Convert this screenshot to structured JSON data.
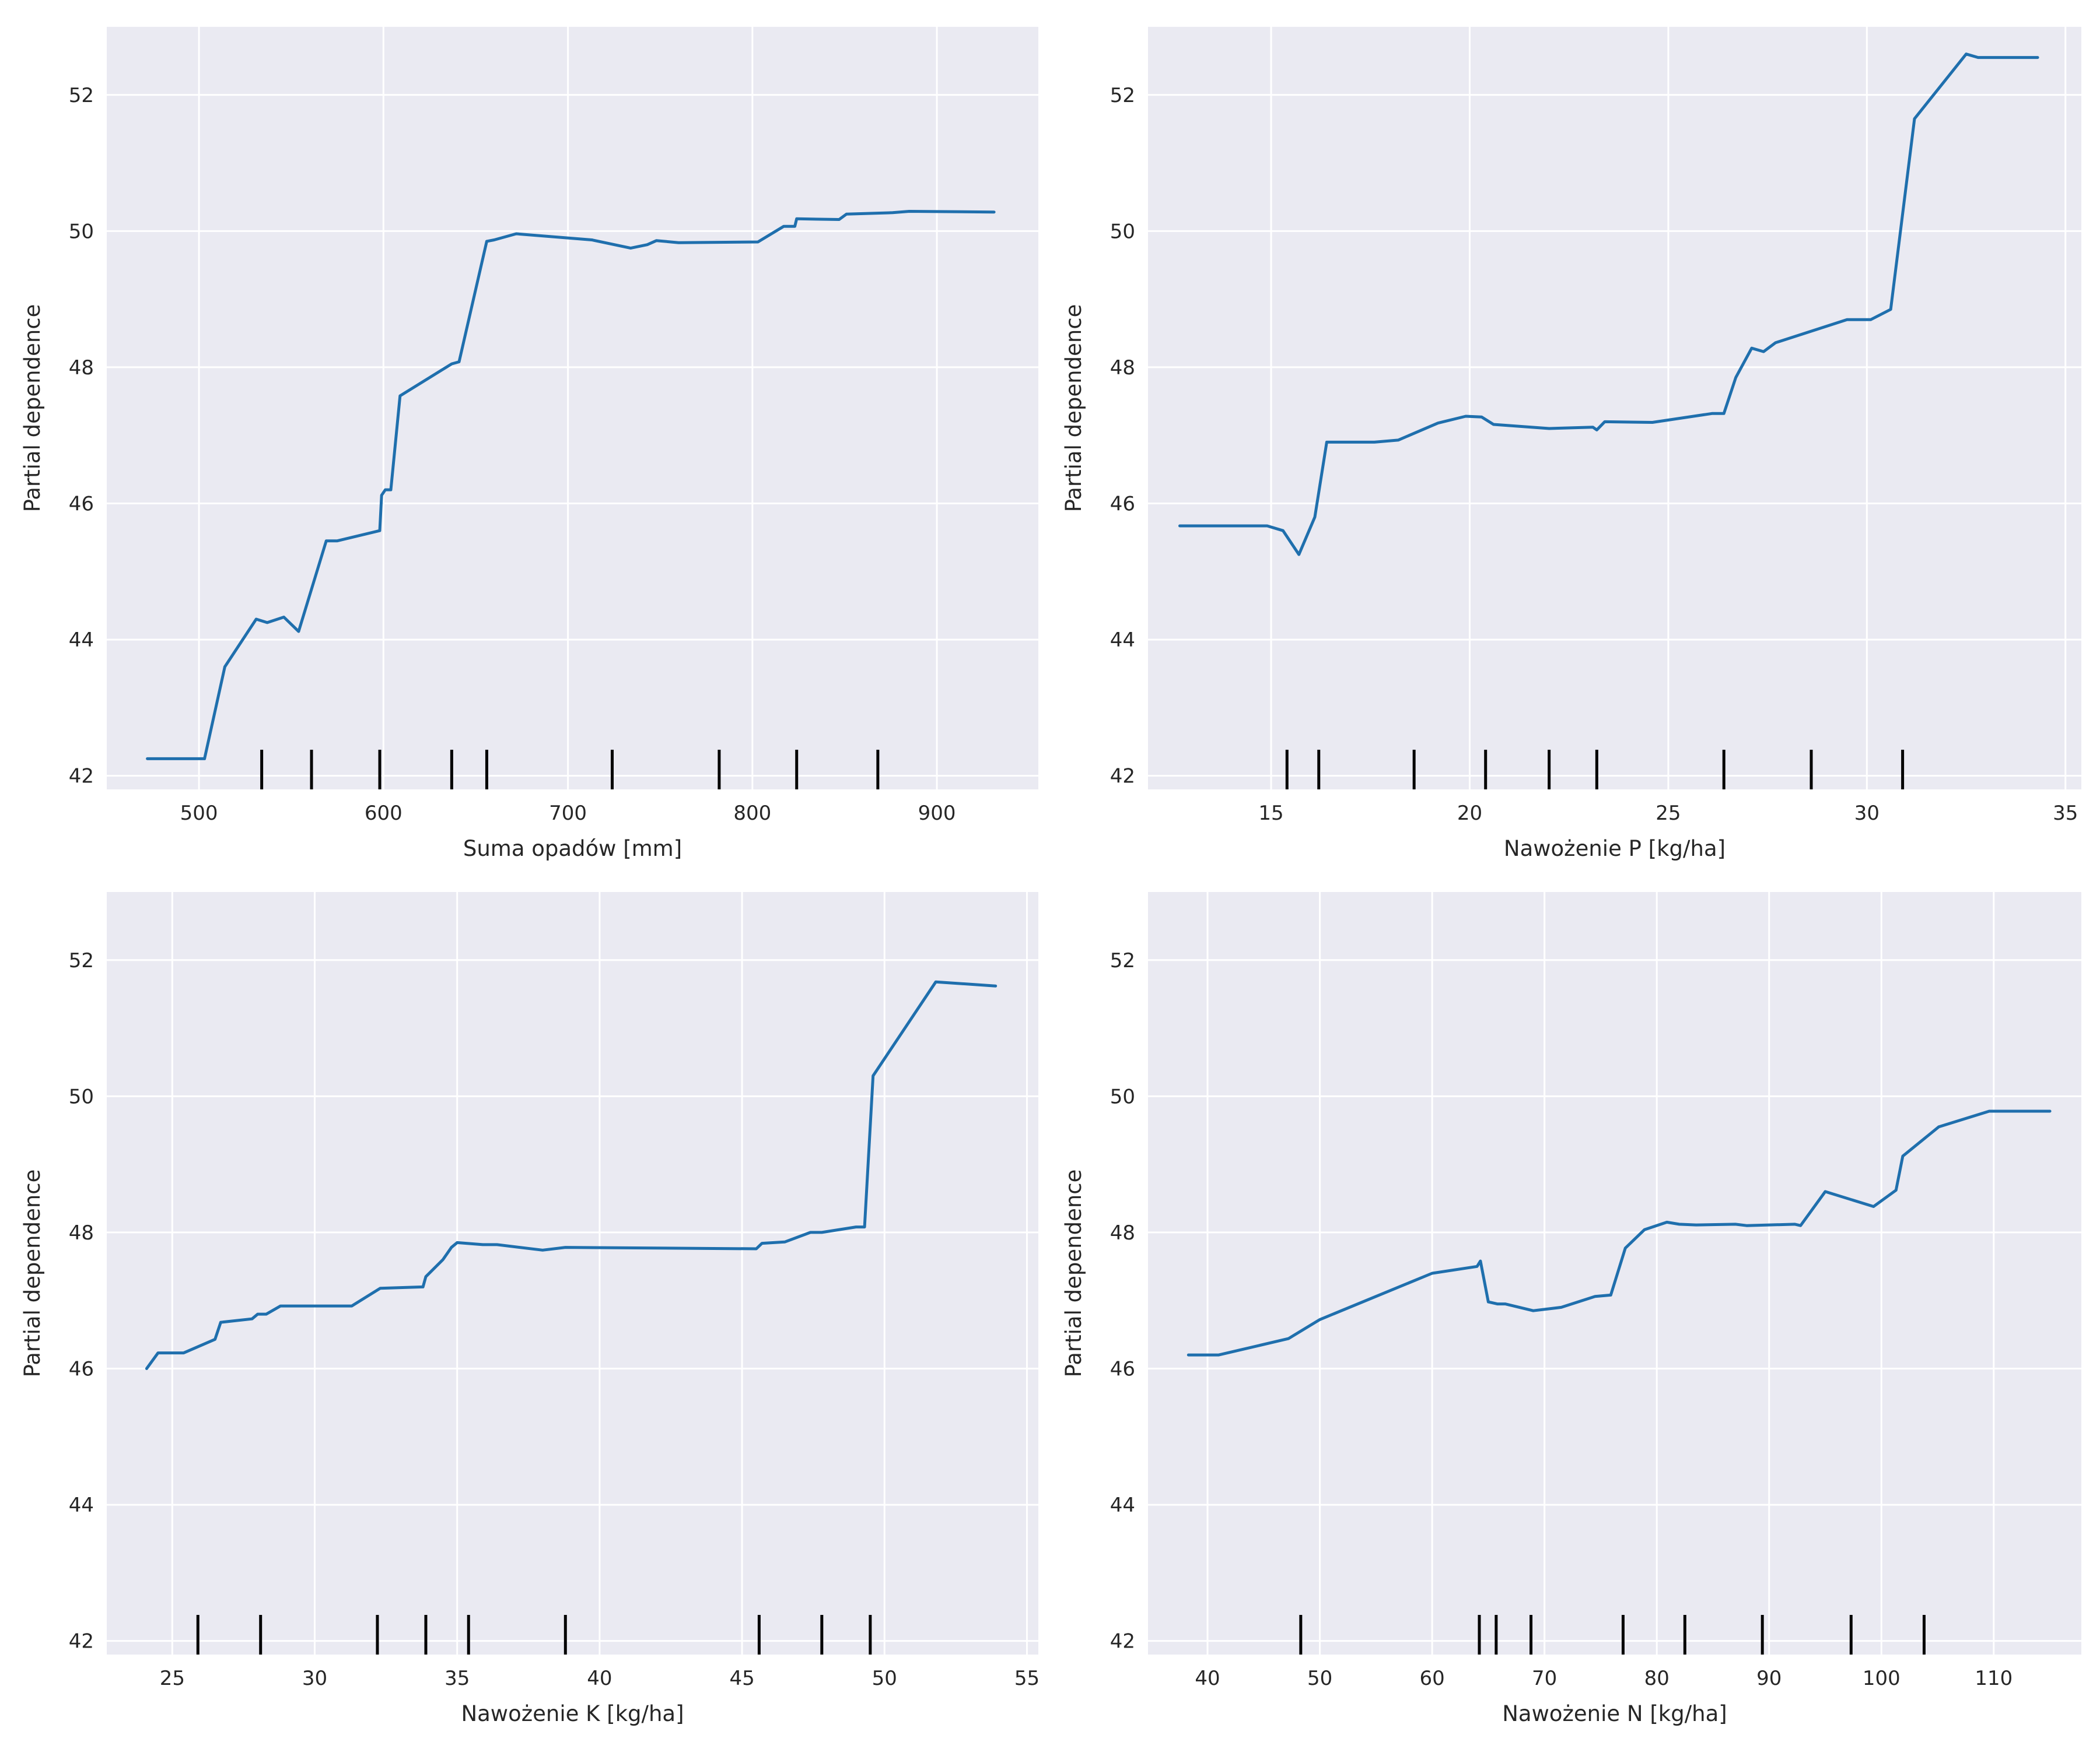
{
  "chart_data": [
    {
      "type": "line",
      "xlabel": "Suma opadów [mm]",
      "ylabel": "Partial dependence",
      "xlim": [
        450,
        955
      ],
      "ylim": [
        41.8,
        53.0
      ],
      "xticks": [
        500,
        600,
        700,
        800,
        900
      ],
      "yticks": [
        42,
        44,
        46,
        48,
        50,
        52
      ],
      "grid": true,
      "series": [
        {
          "x": [
            472,
            503,
            514,
            531,
            537,
            546,
            554,
            569,
            575,
            598,
            599,
            601,
            604,
            609,
            637,
            641,
            656,
            660,
            672,
            713,
            734,
            743,
            748,
            760,
            803,
            817,
            823,
            824,
            847,
            851,
            876,
            885,
            931
          ],
          "y": [
            42.25,
            42.25,
            43.6,
            44.3,
            44.25,
            44.33,
            44.12,
            45.45,
            45.45,
            45.6,
            46.12,
            46.2,
            46.2,
            47.58,
            48.05,
            48.08,
            49.85,
            49.87,
            49.96,
            49.87,
            49.75,
            49.8,
            49.86,
            49.83,
            49.84,
            50.07,
            50.07,
            50.18,
            50.17,
            50.25,
            50.27,
            50.29,
            50.28
          ]
        }
      ],
      "rug": [
        534,
        561,
        598,
        637,
        656,
        724,
        782,
        824,
        868
      ]
    },
    {
      "type": "line",
      "xlabel": "Nawożenie P [kg/ha]",
      "ylabel": "Partial dependence",
      "xlim": [
        11.9,
        35.4
      ],
      "ylim": [
        41.8,
        53.0
      ],
      "xticks": [
        15,
        20,
        25,
        30,
        35
      ],
      "yticks": [
        42,
        44,
        46,
        48,
        50,
        52
      ],
      "grid": true,
      "series": [
        {
          "x": [
            12.7,
            14.9,
            15.3,
            15.7,
            16.1,
            16.4,
            17.6,
            18.2,
            19.2,
            19.9,
            20.3,
            20.6,
            22.0,
            23.1,
            23.2,
            23.4,
            24.6,
            26.1,
            26.4,
            26.7,
            27.1,
            27.4,
            27.7,
            29.5,
            30.1,
            30.6,
            31.2,
            32.5,
            32.8,
            34.3
          ],
          "y": [
            45.67,
            45.67,
            45.6,
            45.25,
            45.8,
            46.9,
            46.9,
            46.93,
            47.18,
            47.28,
            47.27,
            47.16,
            47.1,
            47.12,
            47.08,
            47.2,
            47.19,
            47.32,
            47.32,
            47.85,
            48.28,
            48.23,
            48.36,
            48.7,
            48.7,
            48.85,
            51.65,
            52.6,
            52.55,
            52.55
          ]
        }
      ],
      "rug": [
        15.4,
        16.2,
        18.6,
        20.4,
        22.0,
        23.2,
        26.4,
        28.6,
        30.9
      ]
    },
    {
      "type": "line",
      "xlabel": "Nawożenie K [kg/ha]",
      "ylabel": "Partial dependence",
      "xlim": [
        22.7,
        55.4
      ],
      "ylim": [
        41.8,
        53.0
      ],
      "xticks": [
        25,
        30,
        35,
        40,
        45,
        50,
        55
      ],
      "yticks": [
        42,
        44,
        46,
        48,
        50,
        52
      ],
      "grid": true,
      "series": [
        {
          "x": [
            24.1,
            24.5,
            25.4,
            26.5,
            26.7,
            27.8,
            28.0,
            28.3,
            28.8,
            31.3,
            32.3,
            33.8,
            33.9,
            34.5,
            34.8,
            35.0,
            35.9,
            36.4,
            38.0,
            38.8,
            45.5,
            45.7,
            46.5,
            47.4,
            47.8,
            49.0,
            49.3,
            49.6,
            51.8,
            53.9
          ],
          "y": [
            46.0,
            46.23,
            46.23,
            46.43,
            46.68,
            46.73,
            46.8,
            46.8,
            46.92,
            46.92,
            47.18,
            47.2,
            47.35,
            47.6,
            47.78,
            47.85,
            47.82,
            47.82,
            47.74,
            47.78,
            47.76,
            47.84,
            47.86,
            48.0,
            48.0,
            48.08,
            48.08,
            50.3,
            51.68,
            51.62
          ]
        }
      ],
      "rug": [
        25.9,
        28.1,
        32.2,
        33.9,
        35.4,
        38.8,
        45.6,
        47.8,
        49.5
      ]
    },
    {
      "type": "line",
      "xlabel": "Nawożenie N [kg/ha]",
      "ylabel": "Partial dependence",
      "xlim": [
        34.7,
        117.8
      ],
      "ylim": [
        41.8,
        53.0
      ],
      "xticks": [
        40,
        50,
        60,
        70,
        80,
        90,
        100,
        110
      ],
      "yticks": [
        42,
        44,
        46,
        48,
        50,
        52
      ],
      "grid": true,
      "series": [
        {
          "x": [
            38.3,
            41.0,
            47.2,
            50.0,
            60.0,
            64.0,
            64.3,
            65.0,
            65.8,
            66.5,
            69.0,
            71.5,
            74.5,
            75.9,
            77.2,
            78.9,
            80.9,
            82.0,
            83.5,
            87.0,
            88.0,
            92.3,
            92.8,
            95.0,
            99.3,
            101.3,
            101.9,
            105.1,
            109.6,
            115.0
          ],
          "y": [
            46.2,
            46.2,
            46.44,
            46.72,
            47.4,
            47.5,
            47.58,
            46.98,
            46.95,
            46.95,
            46.85,
            46.9,
            47.06,
            47.08,
            47.77,
            48.04,
            48.15,
            48.12,
            48.11,
            48.12,
            48.1,
            48.12,
            48.1,
            48.6,
            48.38,
            48.62,
            49.12,
            49.55,
            49.78,
            49.78
          ]
        }
      ],
      "rug": [
        48.3,
        64.2,
        65.7,
        68.8,
        77.0,
        82.5,
        89.4,
        97.3,
        103.8
      ]
    }
  ],
  "colors": {
    "plot_bg": "#eaeaf2",
    "grid": "#ffffff",
    "line": "#1f6fad",
    "rug": "#000000",
    "text": "#262626"
  }
}
